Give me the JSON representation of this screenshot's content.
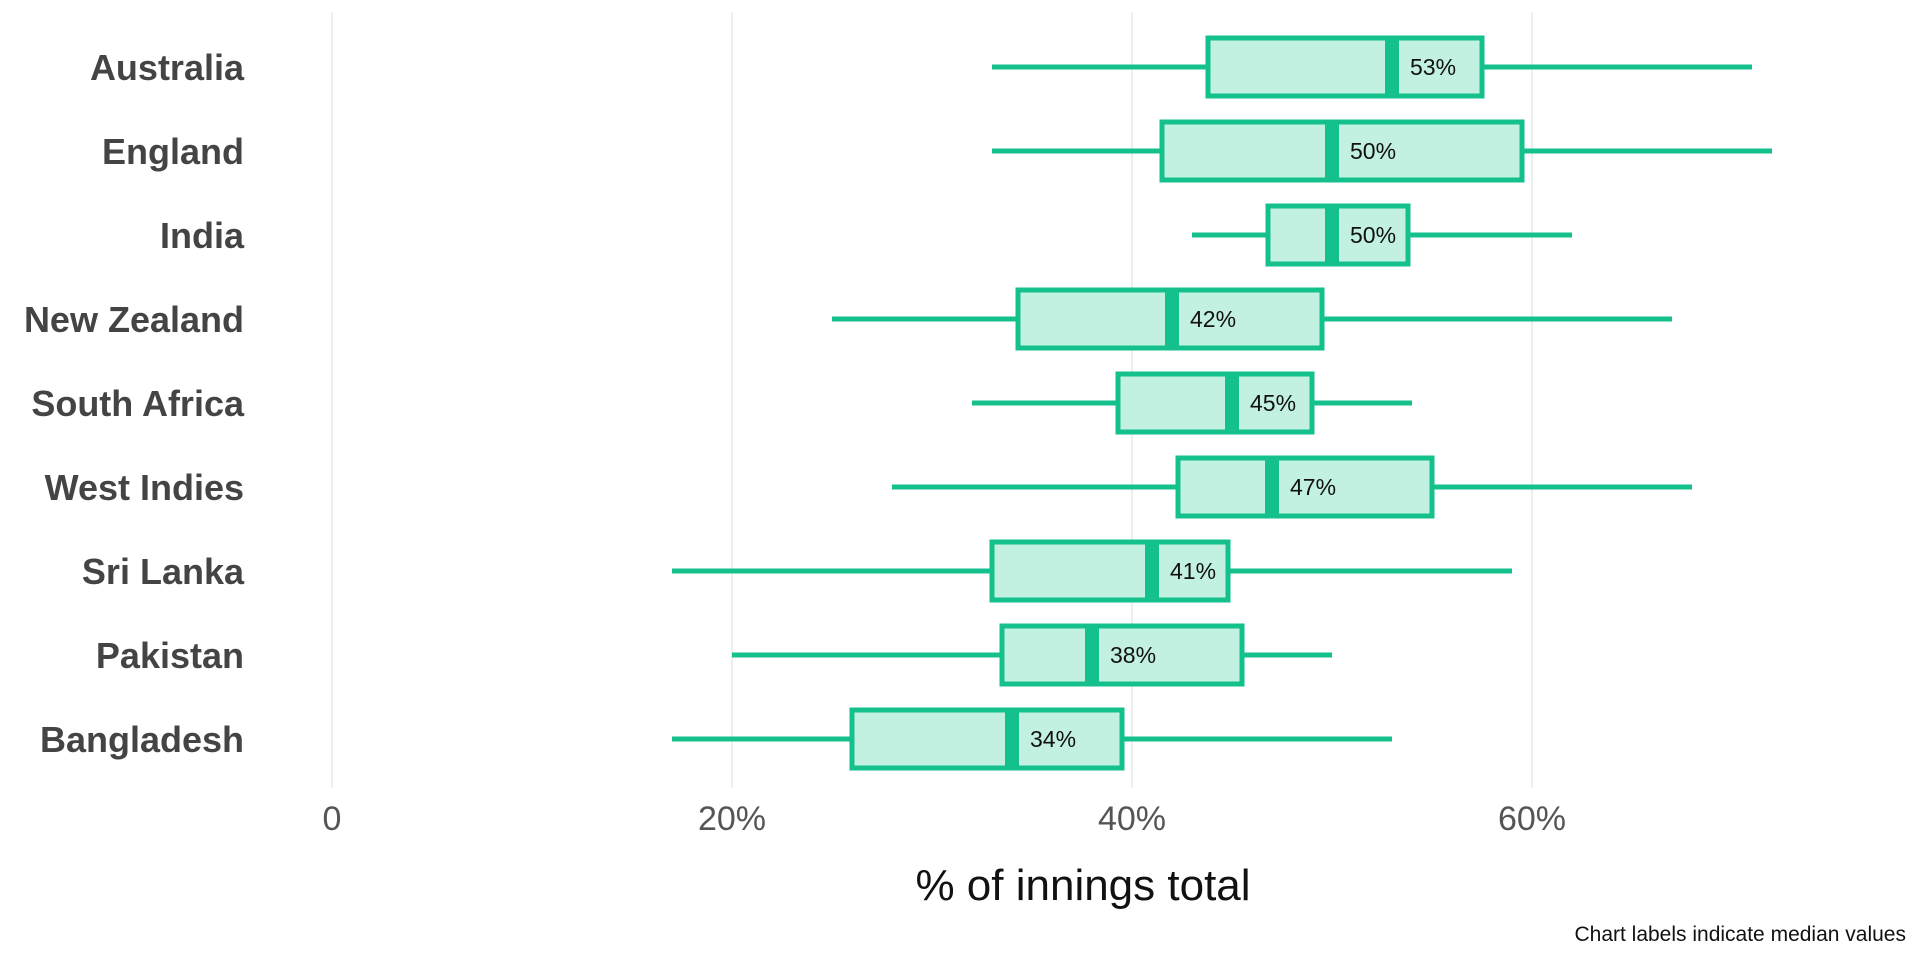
{
  "chart_data": {
    "type": "boxplot",
    "orientation": "horizontal",
    "title": "",
    "xlabel": "% of innings total",
    "ylabel": "",
    "xlim": [
      0,
      80
    ],
    "xticks": [
      {
        "value": 0,
        "label": "0"
      },
      {
        "value": 20,
        "label": "20%"
      },
      {
        "value": 40,
        "label": "40%"
      },
      {
        "value": 60,
        "label": "60%"
      }
    ],
    "grid": true,
    "caption": "Chart labels indicate median values",
    "color": "#14c08c",
    "fill_color": "#c2f0e1",
    "categories": [
      "Australia",
      "England",
      "India",
      "New Zealand",
      "South Africa",
      "West Indies",
      "Sri Lanka",
      "Pakistan",
      "Bangladesh"
    ],
    "boxes": [
      {
        "name": "Australia",
        "min": 33.0,
        "q1": 43.8,
        "median": 53.0,
        "q3": 57.5,
        "max": 71.0,
        "label": "53%"
      },
      {
        "name": "England",
        "min": 33.0,
        "q1": 41.5,
        "median": 50.0,
        "q3": 59.5,
        "max": 72.0,
        "label": "50%"
      },
      {
        "name": "India",
        "min": 43.0,
        "q1": 46.8,
        "median": 50.0,
        "q3": 53.8,
        "max": 62.0,
        "label": "50%"
      },
      {
        "name": "New Zealand",
        "min": 25.0,
        "q1": 34.3,
        "median": 42.0,
        "q3": 49.5,
        "max": 67.0,
        "label": "42%"
      },
      {
        "name": "South Africa",
        "min": 32.0,
        "q1": 39.3,
        "median": 45.0,
        "q3": 49.0,
        "max": 54.0,
        "label": "45%"
      },
      {
        "name": "West Indies",
        "min": 28.0,
        "q1": 42.3,
        "median": 47.0,
        "q3": 55.0,
        "max": 68.0,
        "label": "47%"
      },
      {
        "name": "Sri Lanka",
        "min": 17.0,
        "q1": 33.0,
        "median": 41.0,
        "q3": 44.8,
        "max": 59.0,
        "label": "41%"
      },
      {
        "name": "Pakistan",
        "min": 20.0,
        "q1": 33.5,
        "median": 38.0,
        "q3": 45.5,
        "max": 50.0,
        "label": "38%"
      },
      {
        "name": "Bangladesh",
        "min": 17.0,
        "q1": 26.0,
        "median": 34.0,
        "q3": 39.5,
        "max": 53.0,
        "label": "34%"
      }
    ]
  }
}
